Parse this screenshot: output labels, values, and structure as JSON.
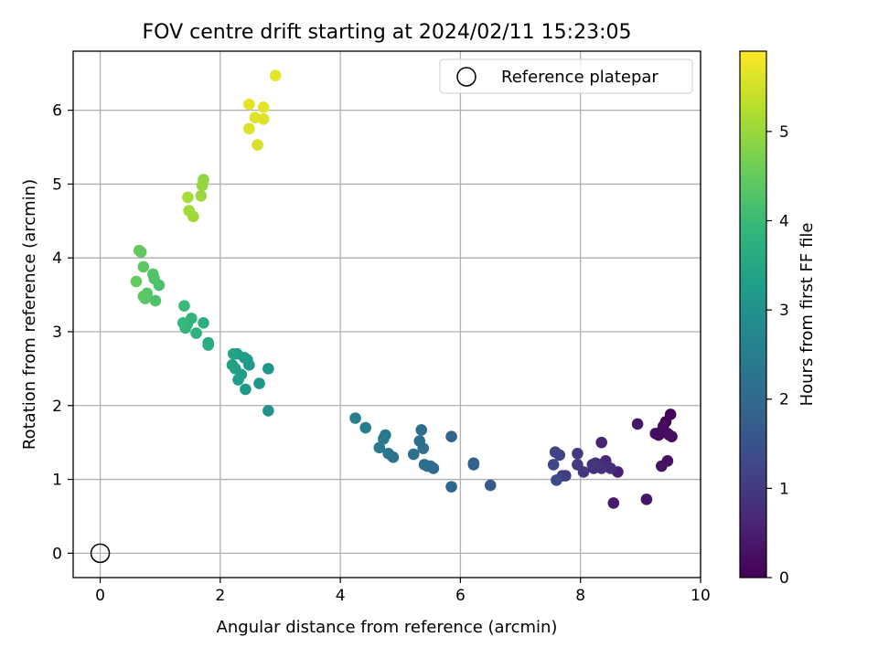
{
  "chart_data": {
    "type": "scatter",
    "title": "FOV centre drift starting at 2024/02/11 15:23:05",
    "xlabel": "Angular distance from reference (arcmin)",
    "ylabel": "Rotation from reference (arcmin)",
    "xlim": [
      -0.45,
      10.0
    ],
    "ylim": [
      -0.33,
      6.8
    ],
    "xticks": [
      0,
      2,
      4,
      6,
      8,
      10
    ],
    "yticks": [
      0,
      1,
      2,
      3,
      4,
      5,
      6
    ],
    "grid": true,
    "legend": {
      "position": "top-right",
      "entries": [
        "Reference platepar"
      ]
    },
    "colormap": "viridis",
    "colorbar": {
      "label": "Hours from first FF file",
      "range": [
        0,
        5.9
      ],
      "ticks": [
        0,
        1,
        2,
        3,
        4,
        5
      ]
    },
    "reference_point": {
      "x": 0,
      "y": 0,
      "label": "Reference platepar"
    },
    "points": [
      {
        "x": 9.5,
        "y": 1.88,
        "hours": 0.02
      },
      {
        "x": 9.42,
        "y": 1.78,
        "hours": 0.05
      },
      {
        "x": 9.35,
        "y": 1.65,
        "hours": 0.08
      },
      {
        "x": 9.3,
        "y": 1.6,
        "hours": 0.1
      },
      {
        "x": 9.45,
        "y": 1.62,
        "hours": 0.12
      },
      {
        "x": 9.52,
        "y": 1.58,
        "hours": 0.14
      },
      {
        "x": 9.38,
        "y": 1.72,
        "hours": 0.16
      },
      {
        "x": 9.25,
        "y": 1.62,
        "hours": 0.2
      },
      {
        "x": 9.48,
        "y": 1.6,
        "hours": 0.22
      },
      {
        "x": 9.45,
        "y": 1.25,
        "hours": 0.28
      },
      {
        "x": 9.35,
        "y": 1.18,
        "hours": 0.3
      },
      {
        "x": 9.1,
        "y": 0.73,
        "hours": 0.35
      },
      {
        "x": 8.95,
        "y": 1.75,
        "hours": 0.38
      },
      {
        "x": 8.55,
        "y": 0.68,
        "hours": 0.45
      },
      {
        "x": 8.62,
        "y": 1.1,
        "hours": 0.52
      },
      {
        "x": 8.35,
        "y": 1.5,
        "hours": 0.6
      },
      {
        "x": 8.42,
        "y": 1.25,
        "hours": 0.65
      },
      {
        "x": 8.3,
        "y": 1.2,
        "hours": 0.7
      },
      {
        "x": 8.22,
        "y": 1.15,
        "hours": 0.75
      },
      {
        "x": 8.5,
        "y": 1.15,
        "hours": 0.8
      },
      {
        "x": 8.35,
        "y": 1.15,
        "hours": 0.82
      },
      {
        "x": 8.25,
        "y": 1.22,
        "hours": 0.85
      },
      {
        "x": 8.2,
        "y": 1.2,
        "hours": 0.88
      },
      {
        "x": 8.05,
        "y": 1.1,
        "hours": 0.9
      },
      {
        "x": 7.95,
        "y": 1.35,
        "hours": 0.95
      },
      {
        "x": 7.95,
        "y": 1.2,
        "hours": 1.0
      },
      {
        "x": 7.75,
        "y": 1.05,
        "hours": 1.05
      },
      {
        "x": 7.7,
        "y": 1.05,
        "hours": 1.1
      },
      {
        "x": 7.65,
        "y": 1.33,
        "hours": 1.15
      },
      {
        "x": 7.58,
        "y": 1.37,
        "hours": 1.2
      },
      {
        "x": 7.55,
        "y": 1.2,
        "hours": 1.25
      },
      {
        "x": 7.6,
        "y": 0.99,
        "hours": 1.3
      },
      {
        "x": 6.5,
        "y": 0.92,
        "hours": 1.7
      },
      {
        "x": 6.22,
        "y": 1.22,
        "hours": 1.8
      },
      {
        "x": 6.22,
        "y": 1.2,
        "hours": 1.85
      },
      {
        "x": 5.85,
        "y": 1.58,
        "hours": 1.9
      },
      {
        "x": 5.85,
        "y": 0.9,
        "hours": 1.95
      },
      {
        "x": 5.55,
        "y": 1.15,
        "hours": 2.0
      },
      {
        "x": 5.5,
        "y": 1.18,
        "hours": 2.05
      },
      {
        "x": 5.45,
        "y": 1.18,
        "hours": 2.08
      },
      {
        "x": 5.35,
        "y": 1.67,
        "hours": 2.1
      },
      {
        "x": 5.38,
        "y": 1.42,
        "hours": 2.12
      },
      {
        "x": 5.32,
        "y": 1.52,
        "hours": 2.15
      },
      {
        "x": 5.4,
        "y": 1.2,
        "hours": 2.18
      },
      {
        "x": 5.22,
        "y": 1.34,
        "hours": 2.2
      },
      {
        "x": 4.88,
        "y": 1.3,
        "hours": 2.25
      },
      {
        "x": 4.8,
        "y": 1.35,
        "hours": 2.3
      },
      {
        "x": 4.75,
        "y": 1.6,
        "hours": 2.35
      },
      {
        "x": 4.72,
        "y": 1.55,
        "hours": 2.38
      },
      {
        "x": 4.65,
        "y": 1.43,
        "hours": 2.42
      },
      {
        "x": 4.42,
        "y": 1.7,
        "hours": 2.5
      },
      {
        "x": 4.25,
        "y": 1.83,
        "hours": 2.55
      },
      {
        "x": 2.8,
        "y": 1.93,
        "hours": 3.0
      },
      {
        "x": 2.8,
        "y": 2.5,
        "hours": 3.05
      },
      {
        "x": 2.65,
        "y": 2.3,
        "hours": 3.1
      },
      {
        "x": 2.42,
        "y": 2.22,
        "hours": 3.15
      },
      {
        "x": 2.48,
        "y": 2.55,
        "hours": 3.18
      },
      {
        "x": 2.45,
        "y": 2.62,
        "hours": 3.2
      },
      {
        "x": 2.4,
        "y": 2.65,
        "hours": 3.22
      },
      {
        "x": 2.35,
        "y": 2.42,
        "hours": 3.25
      },
      {
        "x": 2.3,
        "y": 2.35,
        "hours": 3.28
      },
      {
        "x": 2.28,
        "y": 2.7,
        "hours": 3.3
      },
      {
        "x": 2.25,
        "y": 2.5,
        "hours": 3.33
      },
      {
        "x": 2.2,
        "y": 2.55,
        "hours": 3.36
      },
      {
        "x": 2.22,
        "y": 2.7,
        "hours": 3.4
      },
      {
        "x": 1.8,
        "y": 2.85,
        "hours": 3.6
      },
      {
        "x": 1.8,
        "y": 2.82,
        "hours": 3.65
      },
      {
        "x": 1.72,
        "y": 3.12,
        "hours": 3.7
      },
      {
        "x": 1.6,
        "y": 2.98,
        "hours": 3.75
      },
      {
        "x": 1.52,
        "y": 3.18,
        "hours": 3.8
      },
      {
        "x": 1.45,
        "y": 3.1,
        "hours": 3.85
      },
      {
        "x": 1.42,
        "y": 3.05,
        "hours": 3.9
      },
      {
        "x": 1.38,
        "y": 3.12,
        "hours": 3.95
      },
      {
        "x": 1.4,
        "y": 3.35,
        "hours": 4.0
      },
      {
        "x": 0.98,
        "y": 3.63,
        "hours": 4.2
      },
      {
        "x": 0.92,
        "y": 3.42,
        "hours": 4.25
      },
      {
        "x": 0.88,
        "y": 3.78,
        "hours": 4.28
      },
      {
        "x": 0.9,
        "y": 3.72,
        "hours": 4.3
      },
      {
        "x": 0.78,
        "y": 3.52,
        "hours": 4.32
      },
      {
        "x": 0.75,
        "y": 3.45,
        "hours": 4.35
      },
      {
        "x": 0.72,
        "y": 3.48,
        "hours": 4.38
      },
      {
        "x": 0.72,
        "y": 3.88,
        "hours": 4.4
      },
      {
        "x": 0.68,
        "y": 4.08,
        "hours": 4.45
      },
      {
        "x": 0.65,
        "y": 4.1,
        "hours": 4.48
      },
      {
        "x": 0.6,
        "y": 3.68,
        "hours": 4.5
      },
      {
        "x": 1.72,
        "y": 5.06,
        "hours": 4.9
      },
      {
        "x": 1.7,
        "y": 4.98,
        "hours": 4.95
      },
      {
        "x": 1.68,
        "y": 4.84,
        "hours": 5.0
      },
      {
        "x": 1.55,
        "y": 4.56,
        "hours": 5.05
      },
      {
        "x": 1.48,
        "y": 4.64,
        "hours": 5.08
      },
      {
        "x": 1.46,
        "y": 4.82,
        "hours": 5.12
      },
      {
        "x": 2.92,
        "y": 6.47,
        "hours": 5.7
      },
      {
        "x": 2.72,
        "y": 6.04,
        "hours": 5.65
      },
      {
        "x": 2.72,
        "y": 5.88,
        "hours": 5.6
      },
      {
        "x": 2.62,
        "y": 5.53,
        "hours": 5.55
      },
      {
        "x": 2.58,
        "y": 5.9,
        "hours": 5.62
      },
      {
        "x": 2.48,
        "y": 6.08,
        "hours": 5.68
      },
      {
        "x": 2.48,
        "y": 5.75,
        "hours": 5.58
      }
    ]
  }
}
